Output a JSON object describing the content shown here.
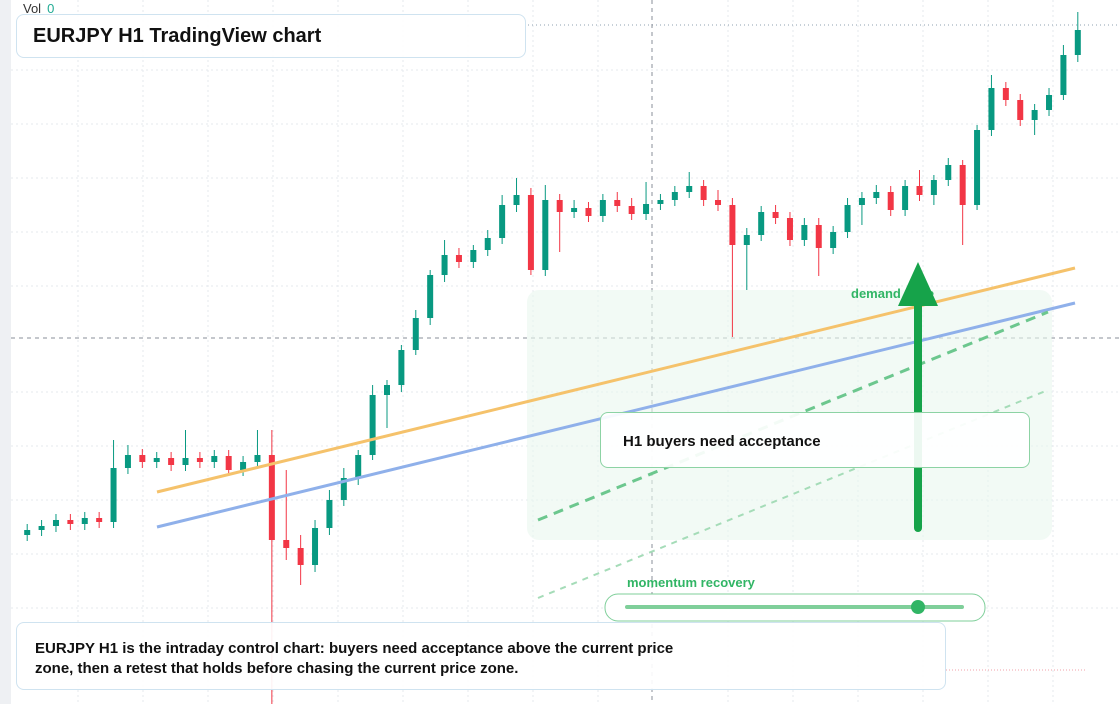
{
  "vol": {
    "label": "Vol",
    "value": 0
  },
  "header": {
    "title": "EURJPY H1 TradingView chart"
  },
  "chart_data": {
    "type": "candlestick",
    "up_color": "#089981",
    "down_color": "#f23645",
    "open": [
      169,
      174,
      178,
      184,
      180,
      186,
      182,
      236,
      249,
      242,
      246,
      239,
      246,
      242,
      248,
      234,
      242,
      249,
      164,
      156,
      139,
      176,
      204,
      226,
      249,
      309,
      319,
      354,
      386,
      429,
      449,
      442,
      454,
      466,
      499,
      509,
      434,
      504,
      492,
      496,
      488,
      504,
      498,
      490,
      500,
      504,
      512,
      518,
      504,
      499,
      459,
      469,
      492,
      486,
      464,
      479,
      456,
      472,
      499,
      506,
      512,
      494,
      518,
      509,
      524,
      539,
      499,
      574,
      616,
      604,
      584,
      594,
      609,
      649
    ],
    "high": [
      180,
      184,
      190,
      190,
      192,
      192,
      264,
      259,
      255,
      252,
      252,
      274,
      252,
      254,
      254,
      248,
      274,
      274,
      234,
      169,
      184,
      214,
      236,
      254,
      319,
      324,
      359,
      394,
      434,
      464,
      456,
      459,
      474,
      509,
      526,
      516,
      519,
      510,
      504,
      502,
      510,
      512,
      506,
      522,
      510,
      518,
      532,
      524,
      514,
      506,
      476,
      498,
      499,
      492,
      486,
      486,
      478,
      506,
      512,
      519,
      518,
      524,
      534,
      529,
      546,
      544,
      579,
      629,
      622,
      610,
      600,
      616,
      659,
      692
    ],
    "low": [
      163,
      168,
      172,
      174,
      174,
      176,
      176,
      230,
      236,
      236,
      233,
      233,
      236,
      236,
      228,
      228,
      236,
      0,
      144,
      119,
      132,
      169,
      198,
      219,
      244,
      276,
      312,
      349,
      379,
      422,
      436,
      436,
      448,
      460,
      492,
      429,
      428,
      452,
      486,
      482,
      482,
      492,
      484,
      484,
      494,
      498,
      506,
      498,
      493,
      367,
      414,
      463,
      480,
      458,
      458,
      428,
      450,
      466,
      479,
      500,
      488,
      488,
      503,
      499,
      518,
      459,
      494,
      568,
      598,
      578,
      569,
      588,
      604,
      642
    ],
    "close": [
      174,
      178,
      184,
      180,
      186,
      182,
      236,
      249,
      242,
      246,
      239,
      246,
      242,
      248,
      234,
      242,
      249,
      164,
      156,
      139,
      176,
      204,
      226,
      249,
      309,
      319,
      354,
      386,
      429,
      449,
      442,
      454,
      466,
      499,
      509,
      434,
      504,
      492,
      496,
      488,
      504,
      498,
      490,
      500,
      504,
      512,
      518,
      504,
      499,
      459,
      469,
      492,
      486,
      464,
      479,
      456,
      472,
      499,
      506,
      512,
      494,
      518,
      509,
      524,
      539,
      499,
      574,
      616,
      604,
      584,
      594,
      609,
      649,
      674
    ]
  },
  "annotations": {
    "zone": "demand zone",
    "box": "H1 buyers need acceptance",
    "momentum": "momentum recovery",
    "caption": "EURJPY H1 is the intraday control chart: buyers need acceptance above the current price zone, then a retest that holds before chasing the current price zone."
  }
}
